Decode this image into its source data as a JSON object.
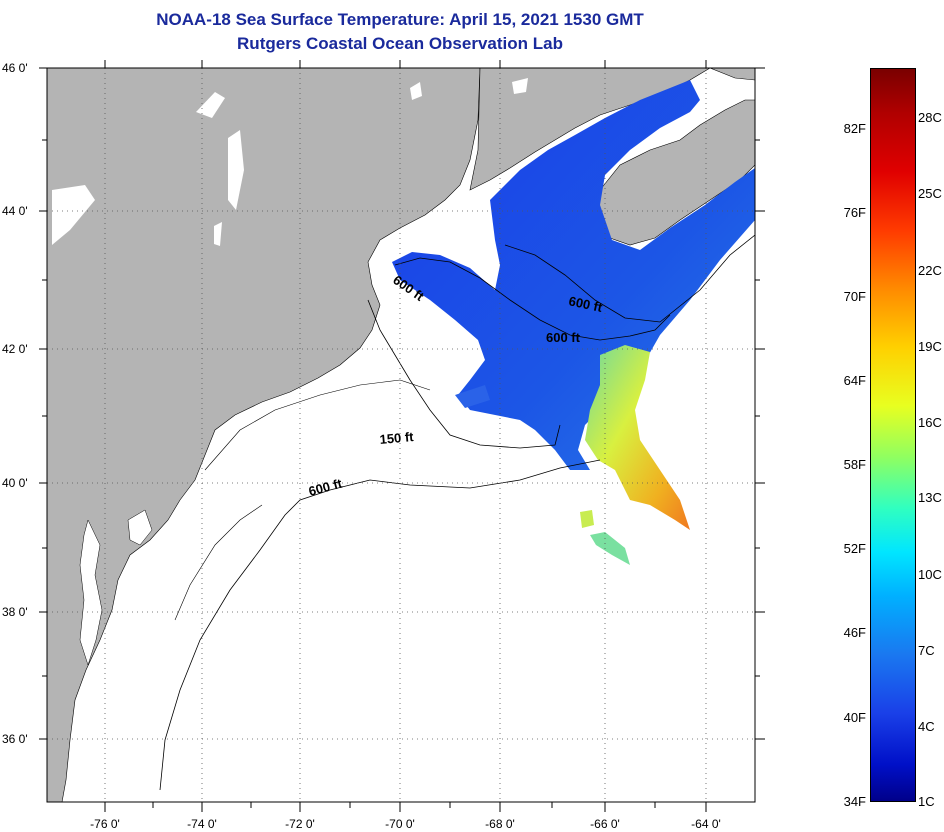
{
  "title": {
    "line1": "NOAA-18 Sea Surface Temperature:  April 15, 2021 1530 GMT",
    "line2": "Rutgers Coastal Ocean Observation Lab"
  },
  "colors": {
    "land": "#b4b4b4",
    "title": "#1a2a9c",
    "water_no_data": "#ffffff"
  },
  "map": {
    "x_labels": [
      "-76 0'",
      "-74 0'",
      "-72 0'",
      "-70 0'",
      "-68 0'",
      "-66 0'",
      "-64 0'"
    ],
    "y_labels": [
      "46 0'",
      "44 0'",
      "42 0'",
      "40 0'",
      "38 0'",
      "36 0'"
    ],
    "contour_labels": [
      "600 ft",
      "600 ft",
      "600 ft",
      "150 ft",
      "600 ft"
    ]
  },
  "colorbar": {
    "fahrenheit": [
      "82F",
      "76F",
      "70F",
      "64F",
      "58F",
      "52F",
      "46F",
      "40F",
      "34F"
    ],
    "celsius": [
      "28C",
      "25C",
      "22C",
      "19C",
      "16C",
      "13C",
      "10C",
      "7C",
      "4C",
      "1C"
    ]
  }
}
